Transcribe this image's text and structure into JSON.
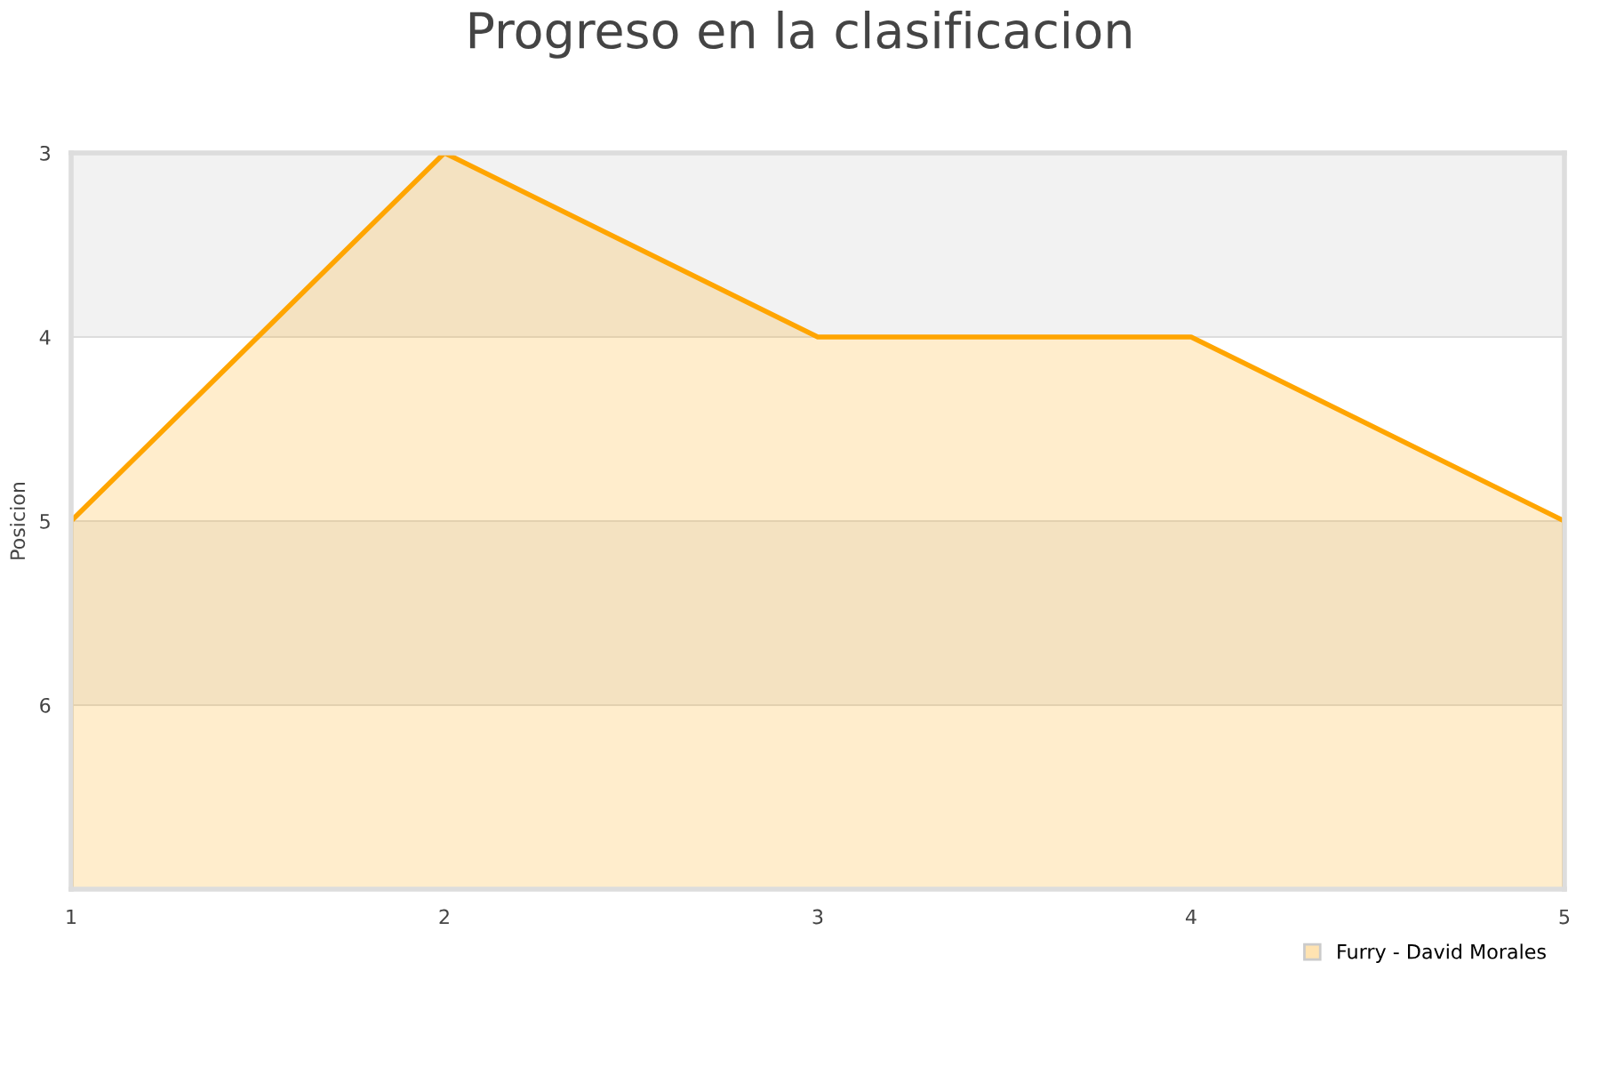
{
  "chart_data": {
    "type": "area",
    "title": "Progreso en la clasificacion",
    "ylabel": "Posicion",
    "x": [
      1,
      2,
      3,
      4,
      5
    ],
    "series": [
      {
        "name": "Furry - David Morales",
        "color": "#ffa500",
        "values": [
          5,
          3,
          4,
          4,
          5
        ]
      }
    ],
    "xlim": [
      1,
      5
    ],
    "xticks": [
      1,
      2,
      3,
      4,
      5
    ],
    "ylim": [
      7,
      3
    ],
    "yticks": [
      3,
      4,
      5,
      6
    ],
    "bands": [
      {
        "axis": "y",
        "from": 3,
        "to": 4,
        "color": "#f2f2f2"
      },
      {
        "axis": "y",
        "from": 5,
        "to": 6,
        "color": "#f2f2f2"
      }
    ],
    "grid": "y",
    "legend": "bottom right",
    "marker": "none",
    "line_style": "solid"
  }
}
